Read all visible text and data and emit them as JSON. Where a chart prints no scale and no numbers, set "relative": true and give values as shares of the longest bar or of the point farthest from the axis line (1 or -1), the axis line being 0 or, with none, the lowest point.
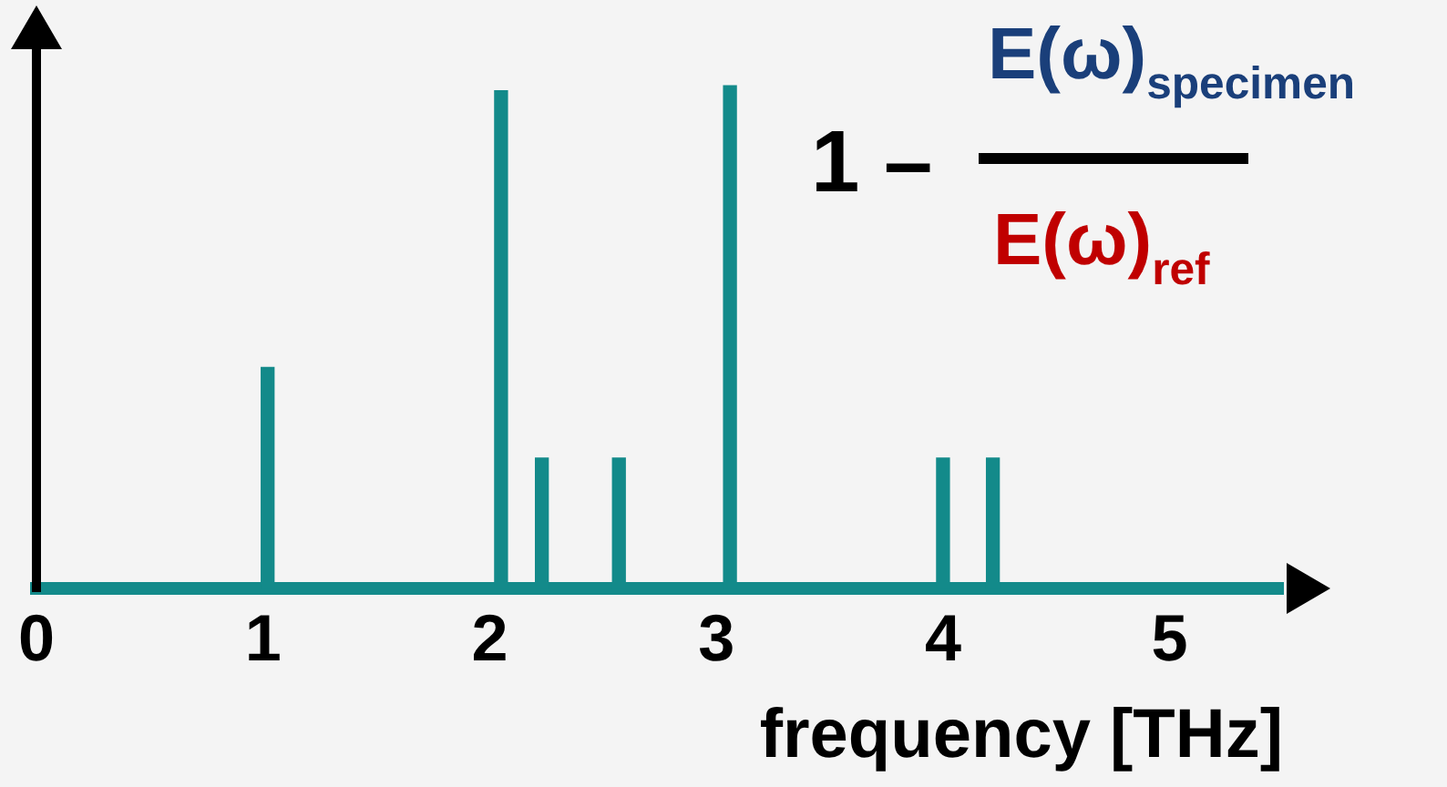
{
  "chart_data": {
    "type": "bar",
    "relative": true,
    "xlabel": "frequency [THz]",
    "x": [
      1.02,
      2.05,
      2.23,
      2.57,
      3.06,
      4.0,
      4.22
    ],
    "values": [
      0.44,
      0.99,
      0.26,
      0.26,
      1,
      0.26,
      0.26
    ],
    "color": "#138a8a",
    "xlim": [
      0,
      5.5
    ],
    "xticks": [
      0,
      1,
      2,
      3,
      4,
      5
    ],
    "tick_labels": "x",
    "annotations": [
      "1 –",
      "E(ω)$_{specimen}$",
      "E(ω)$_{ref}$"
    ]
  }
}
